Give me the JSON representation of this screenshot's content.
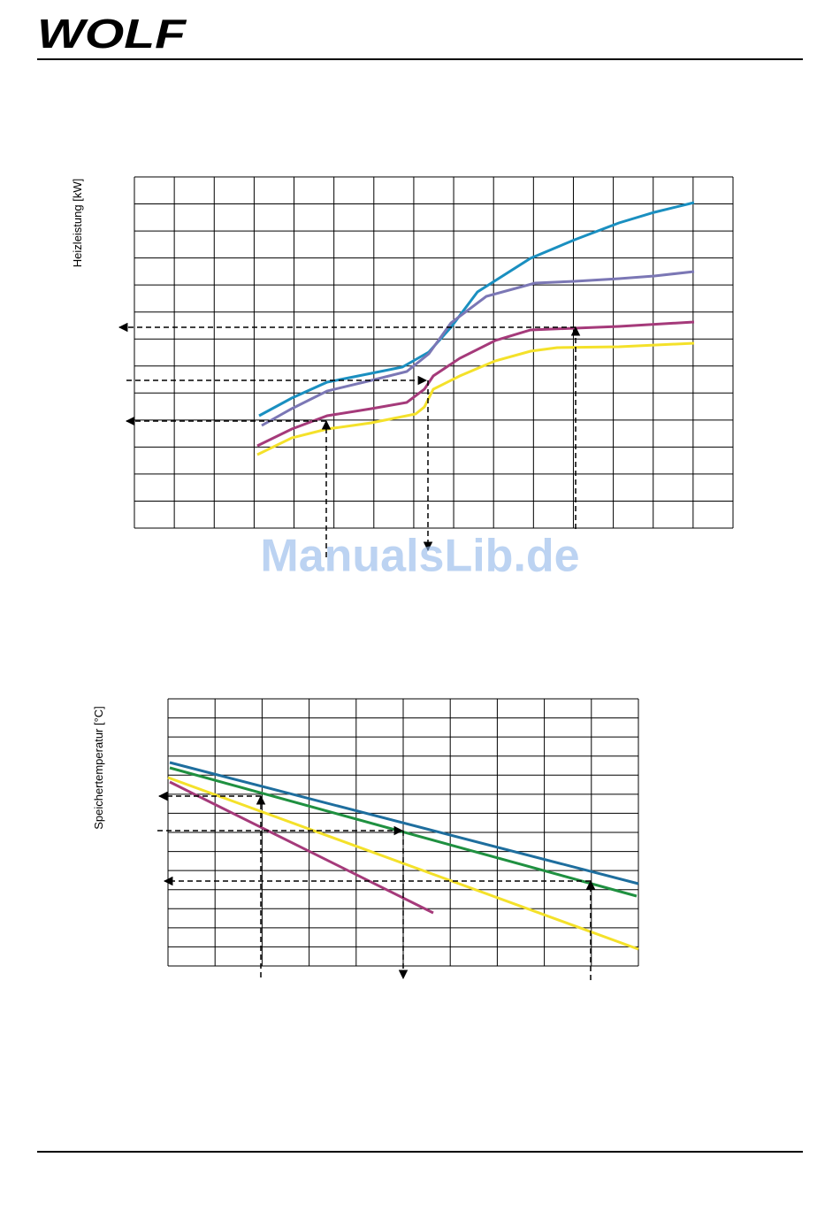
{
  "header": {
    "logo": "WOLF"
  },
  "figures": [
    {
      "y_label": "Heizleistung [kW]"
    },
    {
      "y_label": "Speichertemperatur [°C]"
    }
  ],
  "watermark": "ManualsLib.de"
}
